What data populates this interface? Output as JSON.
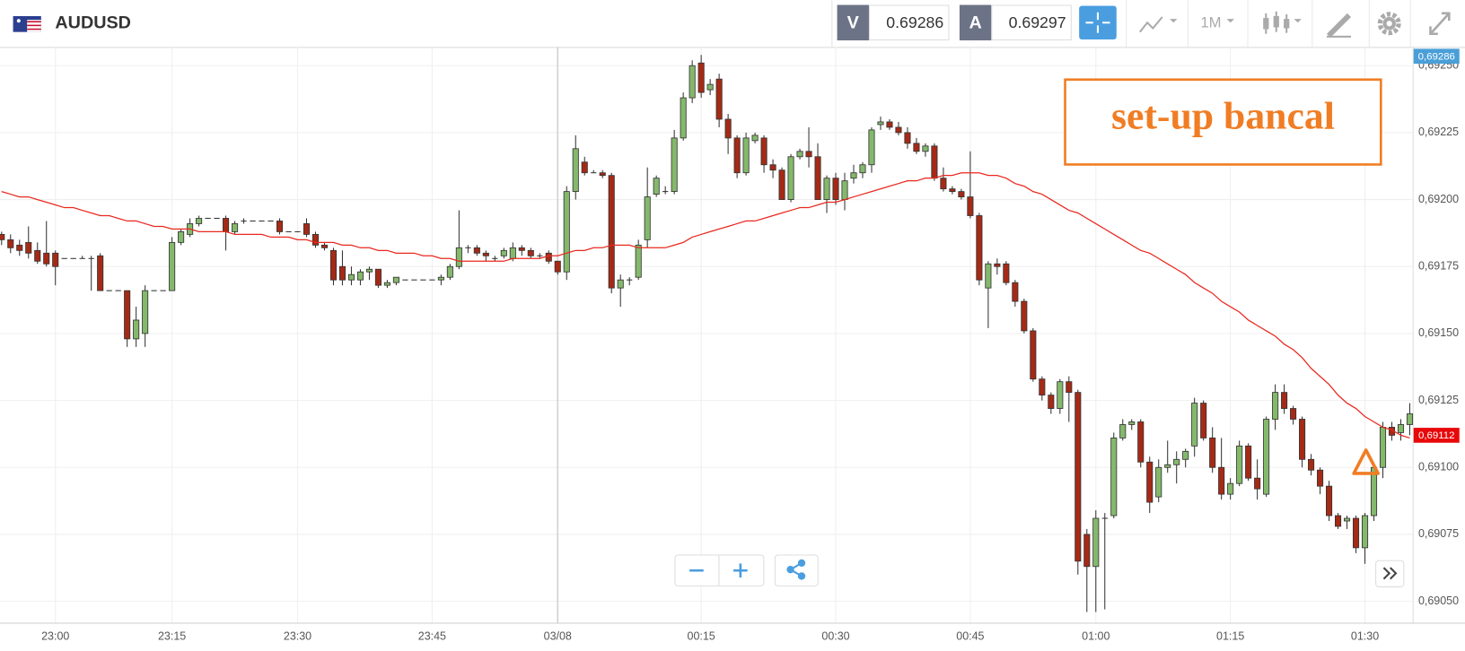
{
  "header": {
    "symbol": "AUDUSD",
    "bid_label": "V",
    "bid": 0.69286,
    "ask_label": "A",
    "ask": 0.69297,
    "timeframe": "1M"
  },
  "chart_data": {
    "type": "candlestick",
    "annotation": "set-up bancal",
    "up_color": "#84b96c",
    "down_color": "#a52a16",
    "ylim": [
      0.69042,
      0.69257
    ],
    "yticks": [
      {
        "value": 0.6905,
        "label": "0,69050"
      },
      {
        "value": 0.69075,
        "label": "0,69075"
      },
      {
        "value": 0.691,
        "label": "0,69100"
      },
      {
        "value": 0.69125,
        "label": "0,69125"
      },
      {
        "value": 0.6915,
        "label": "0,69150"
      },
      {
        "value": 0.69175,
        "label": "0,69175"
      },
      {
        "value": 0.692,
        "label": "0,69200"
      },
      {
        "value": 0.69225,
        "label": "0,69225"
      },
      {
        "value": 0.6925,
        "label": "0,69250"
      }
    ],
    "grid": true,
    "tags": [
      {
        "value": 0.69286,
        "label": "0,69286",
        "color": "#4a9fd8"
      },
      {
        "value": 0.69112,
        "label": "0,69112",
        "color": "#e8080a"
      }
    ],
    "categories": [
      null,
      null,
      null,
      null,
      null,
      null,
      "23:00",
      null,
      null,
      null,
      null,
      null,
      null,
      null,
      null,
      null,
      null,
      null,
      null,
      "23:15",
      null,
      null,
      null,
      null,
      null,
      null,
      null,
      null,
      null,
      null,
      null,
      null,
      null,
      "23:30",
      null,
      null,
      null,
      null,
      null,
      null,
      null,
      null,
      null,
      null,
      null,
      null,
      null,
      null,
      "23:45",
      null,
      null,
      null,
      null,
      null,
      null,
      null,
      null,
      null,
      null,
      null,
      null,
      null,
      "03/08",
      null,
      null,
      null,
      null,
      null,
      null,
      null,
      null,
      null,
      null,
      null,
      null,
      null,
      null,
      null,
      "00:15",
      null,
      null,
      null,
      null,
      null,
      null,
      null,
      null,
      null,
      null,
      null,
      null,
      null,
      null,
      "00:30",
      null,
      null,
      null,
      null,
      null,
      null,
      null,
      null,
      null,
      null,
      null,
      null,
      null,
      null,
      "00:45",
      null,
      null,
      null,
      null,
      null,
      null,
      null,
      null,
      null,
      null,
      null,
      null,
      null,
      "01:00",
      null,
      null,
      null,
      null,
      null,
      null,
      null,
      null,
      null,
      null,
      null,
      null,
      null,
      null,
      "01:15",
      null,
      null,
      null,
      null,
      null,
      null,
      null,
      null,
      null,
      null,
      null,
      null,
      null,
      null,
      "01:30",
      null,
      null,
      null,
      null,
      null
    ],
    "candles": [
      [
        0.69187,
        0.69188,
        0.69183,
        0.69185
      ],
      [
        0.69185,
        0.69187,
        0.6918,
        0.69182
      ],
      [
        0.69183,
        0.69185,
        0.69179,
        0.69181
      ],
      [
        0.69184,
        0.6919,
        0.69178,
        0.6918
      ],
      [
        0.69181,
        0.69184,
        0.69176,
        0.69177
      ],
      [
        0.6918,
        0.69192,
        0.69175,
        0.69176
      ],
      [
        0.6918,
        0.69181,
        0.69168,
        0.69175
      ],
      [
        0.69178,
        0.69178,
        0.69178,
        0.69178
      ],
      [
        0.69178,
        0.69178,
        0.69178,
        0.69178
      ],
      [
        0.69178,
        0.69179,
        0.69178,
        0.69178
      ],
      [
        0.69178,
        0.69179,
        0.69166,
        0.69178
      ],
      [
        0.69179,
        0.6918,
        0.69166,
        0.69166
      ],
      [
        0.69166,
        0.69166,
        0.69166,
        0.69166
      ],
      [
        0.69166,
        0.69166,
        0.69166,
        0.69166
      ],
      [
        0.69166,
        0.69166,
        0.69145,
        0.69148
      ],
      [
        0.69148,
        0.6916,
        0.69145,
        0.69155
      ],
      [
        0.6915,
        0.69168,
        0.69145,
        0.69166
      ],
      [
        0.69166,
        0.69166,
        0.69166,
        0.69166
      ],
      [
        0.69166,
        0.69166,
        0.69166,
        0.69166
      ],
      [
        0.69166,
        0.69186,
        0.69166,
        0.69184
      ],
      [
        0.69184,
        0.69189,
        0.69183,
        0.69188
      ],
      [
        0.69187,
        0.69193,
        0.69186,
        0.69191
      ],
      [
        0.69191,
        0.69194,
        0.6919,
        0.69193
      ],
      [
        0.69193,
        0.69193,
        0.69193,
        0.69193
      ],
      [
        0.69193,
        0.69193,
        0.69193,
        0.69193
      ],
      [
        0.69193,
        0.69194,
        0.69181,
        0.69188
      ],
      [
        0.69188,
        0.69192,
        0.69187,
        0.69191
      ],
      [
        0.69192,
        0.69193,
        0.69191,
        0.69192
      ],
      [
        0.69192,
        0.69192,
        0.69192,
        0.69192
      ],
      [
        0.69192,
        0.69192,
        0.69192,
        0.69192
      ],
      [
        0.69192,
        0.69192,
        0.69192,
        0.69192
      ],
      [
        0.69192,
        0.69193,
        0.69187,
        0.69188
      ],
      [
        0.69188,
        0.69188,
        0.69188,
        0.69188
      ],
      [
        0.69188,
        0.69188,
        0.69188,
        0.69188
      ],
      [
        0.69191,
        0.69193,
        0.69186,
        0.69187
      ],
      [
        0.69187,
        0.69188,
        0.69182,
        0.69183
      ],
      [
        0.69183,
        0.69184,
        0.69181,
        0.69182
      ],
      [
        0.69181,
        0.69182,
        0.69168,
        0.6917
      ],
      [
        0.69175,
        0.69181,
        0.69168,
        0.6917
      ],
      [
        0.6917,
        0.69175,
        0.69168,
        0.69172
      ],
      [
        0.6917,
        0.69174,
        0.69168,
        0.69173
      ],
      [
        0.69173,
        0.69175,
        0.6917,
        0.69174
      ],
      [
        0.69174,
        0.69174,
        0.69167,
        0.69168
      ],
      [
        0.69168,
        0.6917,
        0.69167,
        0.69169
      ],
      [
        0.69169,
        0.69171,
        0.69168,
        0.69171
      ],
      [
        0.6917,
        0.6917,
        0.6917,
        0.6917
      ],
      [
        0.6917,
        0.6917,
        0.6917,
        0.6917
      ],
      [
        0.6917,
        0.6917,
        0.6917,
        0.6917
      ],
      [
        0.6917,
        0.6917,
        0.6917,
        0.6917
      ],
      [
        0.6917,
        0.69172,
        0.69168,
        0.69171
      ],
      [
        0.69171,
        0.69176,
        0.6917,
        0.69175
      ],
      [
        0.69175,
        0.69196,
        0.69174,
        0.69182
      ],
      [
        0.69182,
        0.69183,
        0.6918,
        0.69182
      ],
      [
        0.69182,
        0.69183,
        0.69179,
        0.6918
      ],
      [
        0.6918,
        0.69181,
        0.69177,
        0.69179
      ],
      [
        0.69178,
        0.69179,
        0.69177,
        0.69178
      ],
      [
        0.69179,
        0.69182,
        0.69178,
        0.69181
      ],
      [
        0.69178,
        0.69184,
        0.69177,
        0.69182
      ],
      [
        0.69182,
        0.69183,
        0.69179,
        0.69181
      ],
      [
        0.69181,
        0.69182,
        0.69178,
        0.69179
      ],
      [
        0.69179,
        0.6918,
        0.69178,
        0.69179
      ],
      [
        0.6918,
        0.69181,
        0.69176,
        0.69177
      ],
      [
        0.69177,
        0.69177,
        0.69172,
        0.69173
      ],
      [
        0.69173,
        0.69205,
        0.6917,
        0.69203
      ],
      [
        0.69203,
        0.69224,
        0.692,
        0.69219
      ],
      [
        0.69214,
        0.69216,
        0.69209,
        0.6921
      ],
      [
        0.6921,
        0.69211,
        0.6921,
        0.6921
      ],
      [
        0.6921,
        0.69211,
        0.69208,
        0.69209
      ],
      [
        0.69209,
        0.6921,
        0.69165,
        0.69167
      ],
      [
        0.69167,
        0.69172,
        0.6916,
        0.6917
      ],
      [
        0.6917,
        0.69171,
        0.69168,
        0.6917
      ],
      [
        0.69171,
        0.69185,
        0.6917,
        0.69183
      ],
      [
        0.69185,
        0.69212,
        0.69182,
        0.69201
      ],
      [
        0.69202,
        0.69209,
        0.69201,
        0.69208
      ],
      [
        0.69203,
        0.69205,
        0.69202,
        0.69203
      ],
      [
        0.69203,
        0.69226,
        0.69202,
        0.69223
      ],
      [
        0.69223,
        0.6924,
        0.69222,
        0.69238
      ],
      [
        0.69238,
        0.69252,
        0.69236,
        0.6925
      ],
      [
        0.69251,
        0.69254,
        0.69238,
        0.6924
      ],
      [
        0.69241,
        0.69245,
        0.69239,
        0.69243
      ],
      [
        0.69245,
        0.69247,
        0.69227,
        0.6923
      ],
      [
        0.6923,
        0.69232,
        0.69217,
        0.69223
      ],
      [
        0.69223,
        0.69224,
        0.69208,
        0.6921
      ],
      [
        0.6921,
        0.69225,
        0.69209,
        0.69223
      ],
      [
        0.69222,
        0.69225,
        0.69221,
        0.69224
      ],
      [
        0.69223,
        0.69224,
        0.6921,
        0.69213
      ],
      [
        0.69213,
        0.69215,
        0.69208,
        0.69211
      ],
      [
        0.69211,
        0.69212,
        0.692,
        0.692
      ],
      [
        0.692,
        0.69217,
        0.69199,
        0.69216
      ],
      [
        0.69216,
        0.69219,
        0.69215,
        0.69218
      ],
      [
        0.69218,
        0.69227,
        0.69212,
        0.69216
      ],
      [
        0.69216,
        0.69221,
        0.692,
        0.692
      ],
      [
        0.692,
        0.69209,
        0.69195,
        0.69208
      ],
      [
        0.69208,
        0.6921,
        0.69198,
        0.692
      ],
      [
        0.692,
        0.6921,
        0.69196,
        0.69207
      ],
      [
        0.69208,
        0.69213,
        0.69206,
        0.6921
      ],
      [
        0.6921,
        0.69214,
        0.69208,
        0.69213
      ],
      [
        0.69213,
        0.69227,
        0.6921,
        0.69226
      ],
      [
        0.69228,
        0.69231,
        0.69226,
        0.69229
      ],
      [
        0.69229,
        0.6923,
        0.69226,
        0.69227
      ],
      [
        0.69227,
        0.69229,
        0.69224,
        0.69225
      ],
      [
        0.69225,
        0.69227,
        0.69219,
        0.69221
      ],
      [
        0.69221,
        0.69223,
        0.69217,
        0.69218
      ],
      [
        0.69218,
        0.69221,
        0.69216,
        0.6922
      ],
      [
        0.6922,
        0.69221,
        0.69207,
        0.69208
      ],
      [
        0.69208,
        0.69212,
        0.69203,
        0.69204
      ],
      [
        0.69204,
        0.69205,
        0.69202,
        0.69203
      ],
      [
        0.69203,
        0.69204,
        0.692,
        0.69201
      ],
      [
        0.69201,
        0.69218,
        0.69193,
        0.69194
      ],
      [
        0.69194,
        0.69195,
        0.69168,
        0.6917
      ],
      [
        0.69167,
        0.69177,
        0.69152,
        0.69176
      ],
      [
        0.69176,
        0.69178,
        0.69172,
        0.69175
      ],
      [
        0.69176,
        0.69177,
        0.69168,
        0.69169
      ],
      [
        0.69169,
        0.6917,
        0.6916,
        0.69162
      ],
      [
        0.69162,
        0.69163,
        0.6915,
        0.69151
      ],
      [
        0.69151,
        0.69152,
        0.69132,
        0.69133
      ],
      [
        0.69133,
        0.69134,
        0.69125,
        0.69127
      ],
      [
        0.69127,
        0.69128,
        0.6912,
        0.69122
      ],
      [
        0.69122,
        0.69133,
        0.6912,
        0.69132
      ],
      [
        0.69132,
        0.69134,
        0.69117,
        0.69128
      ],
      [
        0.69128,
        0.69129,
        0.6906,
        0.69065
      ],
      [
        0.69075,
        0.69077,
        0.69046,
        0.69063
      ],
      [
        0.69063,
        0.69084,
        0.69046,
        0.69081
      ],
      [
        0.69081,
        0.69083,
        0.69047,
        0.69081
      ],
      [
        0.69082,
        0.69113,
        0.69081,
        0.69111
      ],
      [
        0.69111,
        0.69118,
        0.6911,
        0.69116
      ],
      [
        0.69116,
        0.69118,
        0.69114,
        0.69117
      ],
      [
        0.69117,
        0.69118,
        0.691,
        0.69102
      ],
      [
        0.69102,
        0.69104,
        0.69083,
        0.69087
      ],
      [
        0.69089,
        0.69103,
        0.69087,
        0.691
      ],
      [
        0.691,
        0.6911,
        0.69098,
        0.69101
      ],
      [
        0.69101,
        0.69106,
        0.69094,
        0.69103
      ],
      [
        0.69103,
        0.69107,
        0.691,
        0.69106
      ],
      [
        0.69108,
        0.69126,
        0.69104,
        0.69124
      ],
      [
        0.69124,
        0.69125,
        0.6911,
        0.69111
      ],
      [
        0.69111,
        0.69115,
        0.69098,
        0.691
      ],
      [
        0.691,
        0.69111,
        0.69088,
        0.6909
      ],
      [
        0.6909,
        0.69096,
        0.69088,
        0.69094
      ],
      [
        0.69094,
        0.6911,
        0.69093,
        0.69108
      ],
      [
        0.69108,
        0.69109,
        0.69095,
        0.69096
      ],
      [
        0.69096,
        0.69103,
        0.69088,
        0.69092
      ],
      [
        0.6909,
        0.69119,
        0.69089,
        0.69118
      ],
      [
        0.69118,
        0.69131,
        0.69114,
        0.69128
      ],
      [
        0.69128,
        0.69131,
        0.6912,
        0.69122
      ],
      [
        0.69122,
        0.69123,
        0.69116,
        0.69118
      ],
      [
        0.69118,
        0.69119,
        0.691,
        0.69103
      ],
      [
        0.69103,
        0.69105,
        0.69097,
        0.69099
      ],
      [
        0.69099,
        0.691,
        0.6909,
        0.69093
      ],
      [
        0.69093,
        0.69095,
        0.6908,
        0.69082
      ],
      [
        0.69082,
        0.69083,
        0.69077,
        0.69078
      ],
      [
        0.6908,
        0.69082,
        0.69077,
        0.69081
      ],
      [
        0.69081,
        0.69082,
        0.69068,
        0.6907
      ],
      [
        0.6907,
        0.69083,
        0.69064,
        0.69082
      ],
      [
        0.69082,
        0.69101,
        0.6908,
        0.691
      ],
      [
        0.691,
        0.69117,
        0.69096,
        0.69115
      ],
      [
        0.69115,
        0.69117,
        0.6911,
        0.69112
      ],
      [
        0.69113,
        0.69118,
        0.6911,
        0.69116
      ],
      [
        0.69116,
        0.69124,
        0.69112,
        0.6912
      ]
    ],
    "ma": {
      "color": "#e8281e",
      "values": [
        0.69203,
        0.69202,
        0.69201,
        0.69201,
        0.692,
        0.69199,
        0.69198,
        0.69197,
        0.69197,
        0.69196,
        0.69195,
        0.69194,
        0.69194,
        0.69193,
        0.69192,
        0.69192,
        0.69191,
        0.6919,
        0.6919,
        0.69189,
        0.69189,
        0.69189,
        0.69188,
        0.69188,
        0.69188,
        0.69188,
        0.69187,
        0.69187,
        0.69187,
        0.69187,
        0.69186,
        0.69186,
        0.69186,
        0.69185,
        0.69185,
        0.69184,
        0.69184,
        0.69184,
        0.69183,
        0.69183,
        0.69182,
        0.69182,
        0.69181,
        0.69181,
        0.6918,
        0.6918,
        0.6918,
        0.69179,
        0.69179,
        0.69178,
        0.69178,
        0.69177,
        0.69177,
        0.69177,
        0.69177,
        0.69177,
        0.69177,
        0.69178,
        0.69178,
        0.69178,
        0.69178,
        0.69179,
        0.69179,
        0.6918,
        0.69181,
        0.69181,
        0.69182,
        0.69182,
        0.69183,
        0.69183,
        0.69183,
        0.69182,
        0.69182,
        0.69182,
        0.69182,
        0.69183,
        0.69184,
        0.69186,
        0.69187,
        0.69188,
        0.69189,
        0.6919,
        0.69191,
        0.69192,
        0.69192,
        0.69193,
        0.69194,
        0.69195,
        0.69196,
        0.69197,
        0.69197,
        0.69198,
        0.69199,
        0.69199,
        0.692,
        0.69201,
        0.69202,
        0.69203,
        0.69204,
        0.69205,
        0.69206,
        0.69207,
        0.69207,
        0.69208,
        0.69208,
        0.69209,
        0.69209,
        0.6921,
        0.6921,
        0.6921,
        0.69209,
        0.69209,
        0.69208,
        0.69206,
        0.69205,
        0.69203,
        0.69202,
        0.692,
        0.69198,
        0.69196,
        0.69195,
        0.69193,
        0.69191,
        0.69189,
        0.69187,
        0.69185,
        0.69183,
        0.69181,
        0.6918,
        0.69178,
        0.69176,
        0.69174,
        0.69172,
        0.69169,
        0.69167,
        0.69165,
        0.69162,
        0.6916,
        0.69158,
        0.69155,
        0.69153,
        0.69151,
        0.69149,
        0.69146,
        0.69144,
        0.69141,
        0.69137,
        0.69134,
        0.69131,
        0.69127,
        0.69124,
        0.69122,
        0.69119,
        0.69117,
        0.69115,
        0.69114,
        0.69112,
        0.69111
      ]
    }
  }
}
